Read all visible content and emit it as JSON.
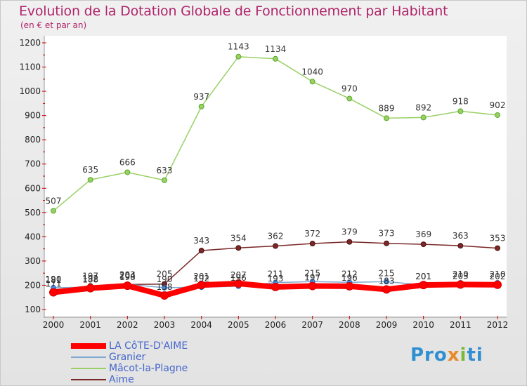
{
  "header": {
    "title": "Evolution de la Dotation Globale de Fonctionnement par Habitant",
    "subtitle": "(en € et par an)"
  },
  "logo": {
    "p1": "Pro",
    "p2": "x",
    "p3": "i",
    "p4": "ti"
  },
  "chart_data": {
    "type": "line",
    "title": "Evolution de la Dotation Globale de Fonctionnement par Habitant",
    "subtitle": "(en € et par an)",
    "xlabel": "",
    "ylabel": "",
    "ylim": [
      100,
      1200
    ],
    "yticks": [
      100,
      200,
      300,
      400,
      500,
      600,
      700,
      800,
      900,
      1000,
      1100,
      1200
    ],
    "categories": [
      "2000",
      "2001",
      "2002",
      "2003",
      "2004",
      "2005",
      "2006",
      "2007",
      "2008",
      "2009",
      "2010",
      "2011",
      "2012"
    ],
    "grid": false,
    "legend_position": "bottom-left",
    "series": [
      {
        "name": "LA CôTE-D'AIME",
        "color": "#ff0000",
        "values": [
          171,
          188,
          198,
          158,
          201,
          207,
          193,
          197,
          196,
          183,
          201,
          203,
          202
        ]
      },
      {
        "name": "Granier",
        "color": "#7fa8d0",
        "values": [
          190,
          192,
          204,
          190,
          192,
          196,
          211,
          215,
          212,
          215,
          201,
          210,
          210
        ]
      },
      {
        "name": "Mâcot-la-Plagne",
        "color": "#99d065",
        "values": [
          507,
          635,
          666,
          633,
          937,
          1143,
          1134,
          1040,
          970,
          889,
          892,
          918,
          902
        ]
      },
      {
        "name": "Aime",
        "color": "#7a2828",
        "values": [
          181,
          197,
          203,
          205,
          343,
          354,
          362,
          372,
          379,
          373,
          369,
          363,
          353
        ]
      }
    ]
  }
}
